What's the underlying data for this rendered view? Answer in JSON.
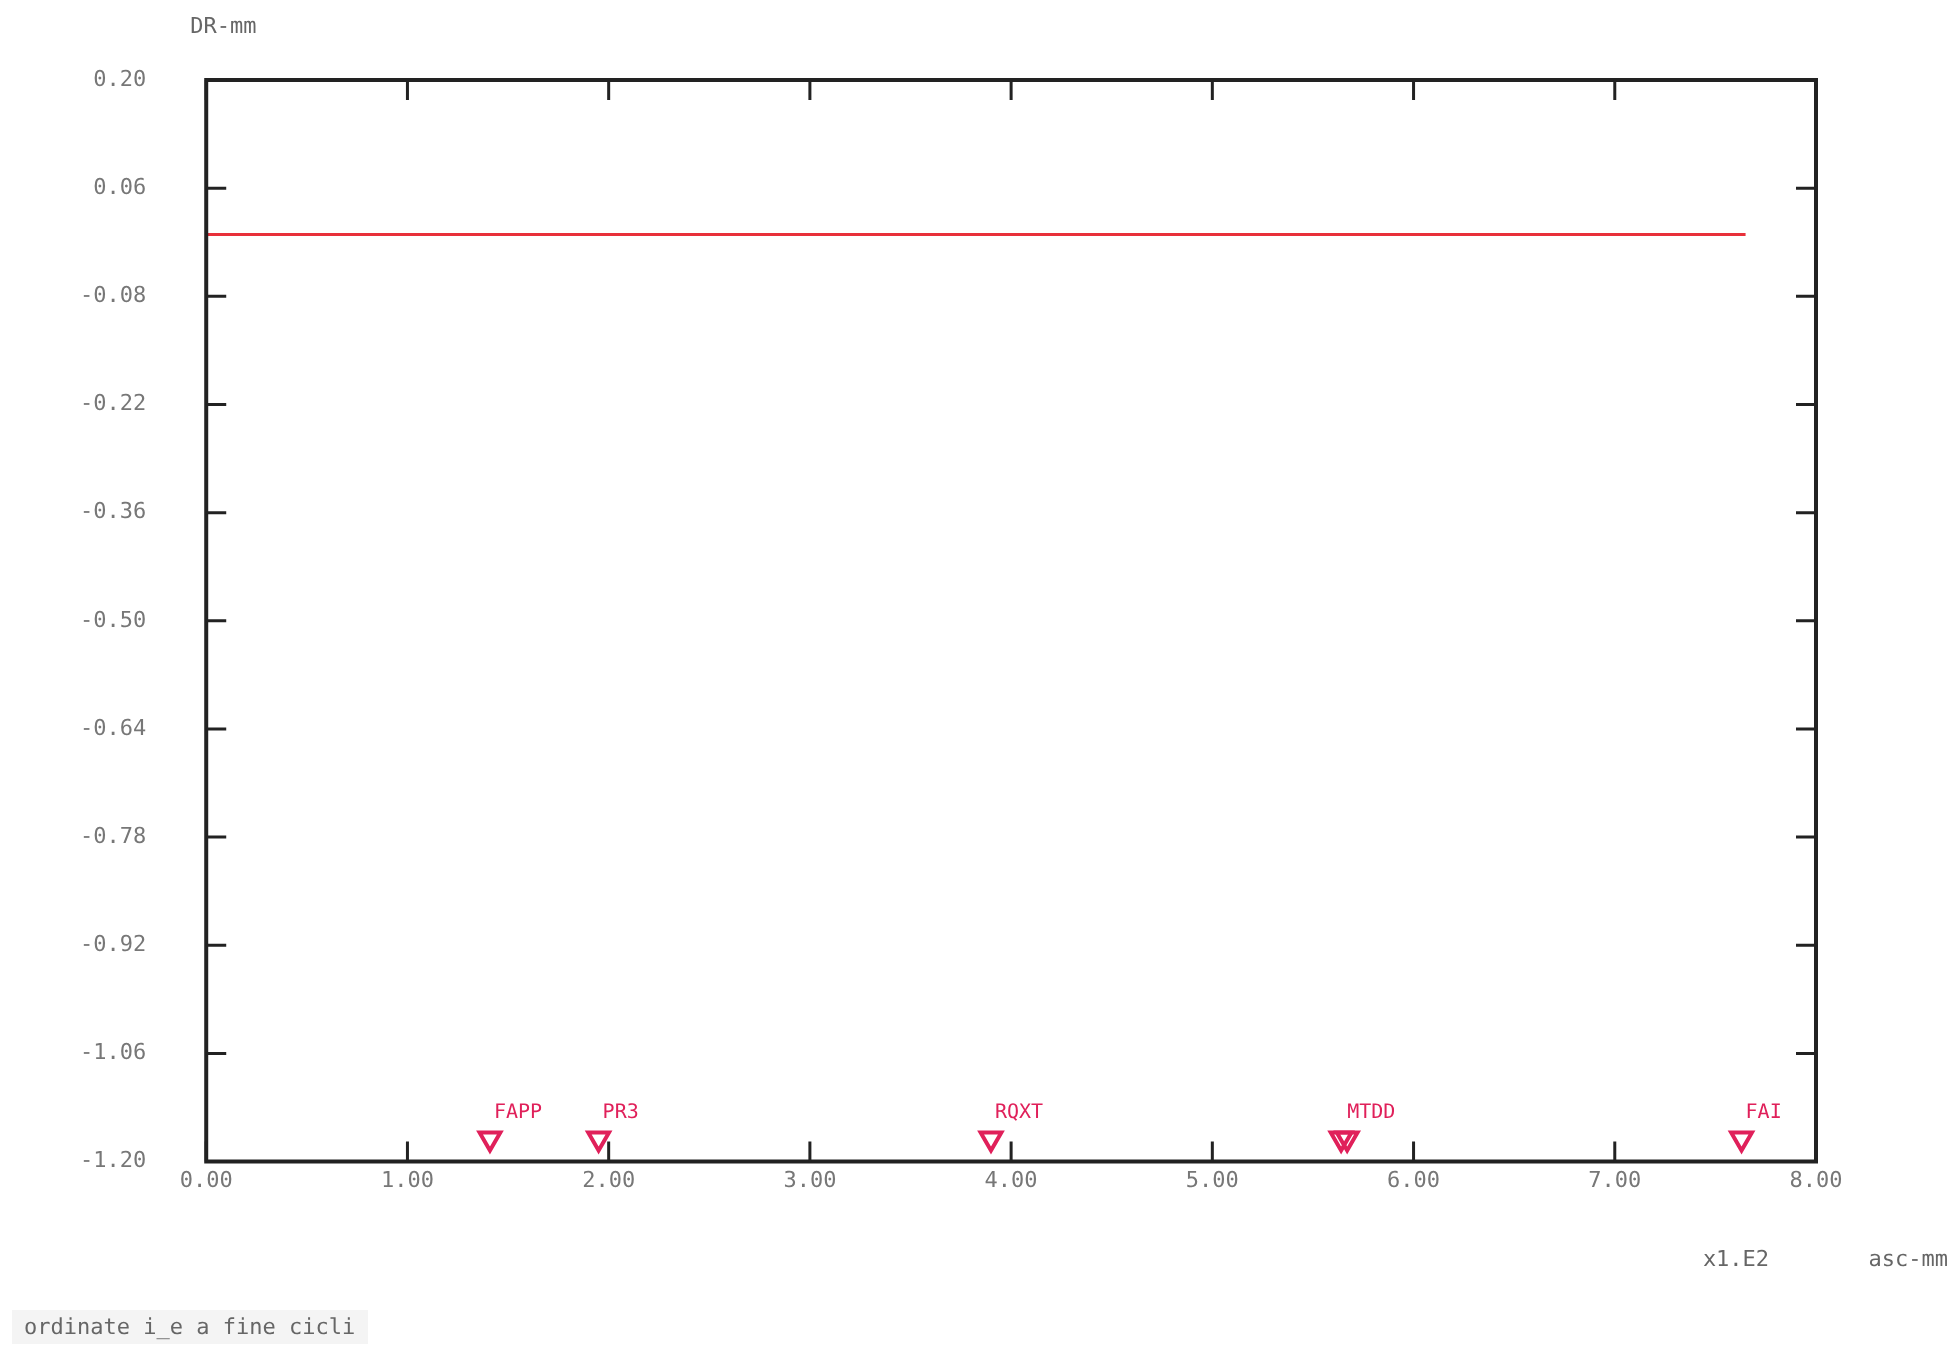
{
  "chart_data": {
    "type": "line",
    "ylabel": "DR-mm",
    "xlabel": "asc-mm",
    "xlim": [
      0,
      8
    ],
    "xticks": [
      {
        "value": 0,
        "label": "0.00"
      },
      {
        "value": 1,
        "label": "1.00"
      },
      {
        "value": 2,
        "label": "2.00"
      },
      {
        "value": 3,
        "label": "3.00"
      },
      {
        "value": 4,
        "label": "4.00"
      },
      {
        "value": 5,
        "label": "5.00"
      },
      {
        "value": 6,
        "label": "6.00"
      },
      {
        "value": 7,
        "label": "7.00"
      },
      {
        "value": 8,
        "label": "8.00"
      }
    ],
    "ylim": [
      -1.2,
      0.2
    ],
    "yticks": [
      {
        "value": 0.2,
        "label": "0.20"
      },
      0.06,
      -0.08,
      -0.22,
      -0.36,
      {
        "value": -0.5,
        "label": "-0.50"
      },
      -0.64,
      -0.78,
      -0.92,
      -1.06,
      {
        "value": -1.2,
        "label": "-1.20"
      }
    ],
    "grid": false,
    "legend": false,
    "series": [
      {
        "color": "#e8303a",
        "x": [
          0,
          7.65
        ],
        "values": [
          0,
          0
        ],
        "marker": "none"
      },
      {
        "type": "scatter",
        "color": "#e0205a",
        "x": [
          1.41,
          1.95,
          3.9,
          5.64,
          5.67,
          7.63
        ],
        "values": [
          -1.17,
          -1.17,
          -1.17,
          -1.17,
          -1.17,
          -1.17
        ],
        "marker": "triangle"
      }
    ],
    "annotations": [
      {
        "text": "FAPP",
        "x": 1.41,
        "y": -1.17
      },
      {
        "text": "PR3",
        "x": 1.95,
        "y": -1.17
      },
      {
        "text": "RQXT",
        "x": 3.9,
        "y": -1.17
      },
      {
        "text": "MTDD",
        "x": 5.65,
        "y": -1.17
      },
      {
        "text": "FAI",
        "x": 7.63,
        "y": -1.17
      },
      "x1.E2",
      "ordinate i_e a fine cicli"
    ]
  }
}
